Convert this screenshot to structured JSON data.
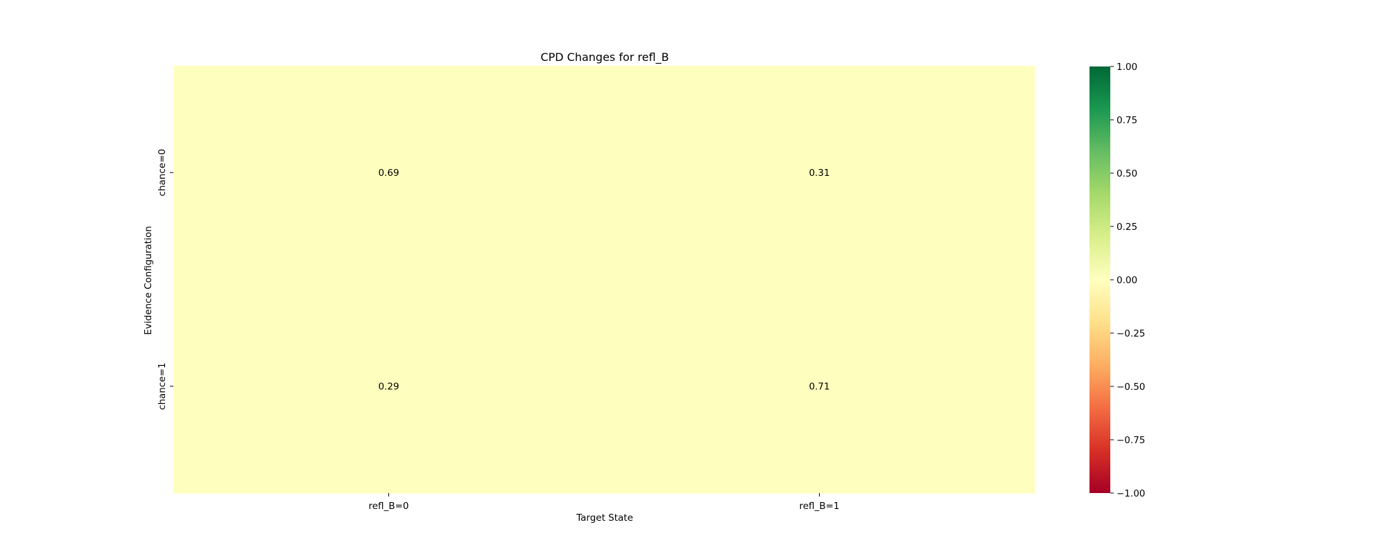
{
  "chart_data": {
    "type": "heatmap",
    "title": "CPD Changes for refl_B",
    "xlabel": "Target State",
    "ylabel": "Evidence Configuration",
    "x_categories": [
      "refl_B=0",
      "refl_B=1"
    ],
    "y_categories": [
      "chance=0",
      "chance=1"
    ],
    "values": [
      [
        0.69,
        0.31
      ],
      [
        0.29,
        0.71
      ]
    ],
    "cell_color_values": [
      [
        0.0,
        0.0
      ],
      [
        0.0,
        0.0
      ]
    ],
    "colormap": "RdYlGn",
    "vmin": -1,
    "vmax": 1,
    "colorbar_ticks": [
      "1.00",
      "0.75",
      "0.50",
      "0.25",
      "0.00",
      "−0.25",
      "−0.50",
      "−0.75",
      "−1.00"
    ],
    "colorbar_tick_values": [
      1,
      0.75,
      0.5,
      0.25,
      0,
      -0.25,
      -0.5,
      -0.75,
      -1
    ],
    "colors": {
      "cell_fill": "#feffbe",
      "colormap_stops": [
        "#a50026",
        "#d73027",
        "#f46d43",
        "#fdae61",
        "#fee08b",
        "#ffffbf",
        "#d9ef8b",
        "#a6d96a",
        "#66bd63",
        "#1a9850",
        "#006837"
      ]
    }
  }
}
